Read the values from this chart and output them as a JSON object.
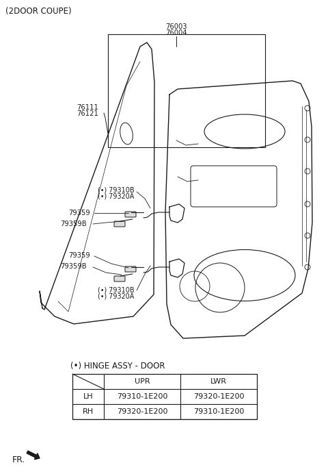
{
  "title": "(2DOOR COUPE)",
  "bg_color": "#ffffff",
  "fig_width": 4.8,
  "fig_height": 6.95,
  "dpi": 100,
  "label_76003": "76003",
  "label_76004": "76004",
  "label_76111": "76111",
  "label_76121": "76121",
  "label_79310B_upper": "(•) 79310B",
  "label_79320A_upper": "(•) 79320A",
  "label_79359_upper": "79359",
  "label_79359B_upper": "79359B",
  "label_79359_lower": "79359",
  "label_79359B_lower": "79359B",
  "label_79310B_lower": "(•) 79310B",
  "label_79320A_lower": "(•) 79320A",
  "hinge_label": "(•) HINGE ASSY - DOOR",
  "table_rows": [
    [
      "LH",
      "79310-1E200",
      "79320-1E200"
    ],
    [
      "RH",
      "79320-1E200",
      "79310-1E200"
    ]
  ],
  "fr_label": "FR.",
  "font_color": "#1a1a1a",
  "line_color": "#1a1a1a"
}
